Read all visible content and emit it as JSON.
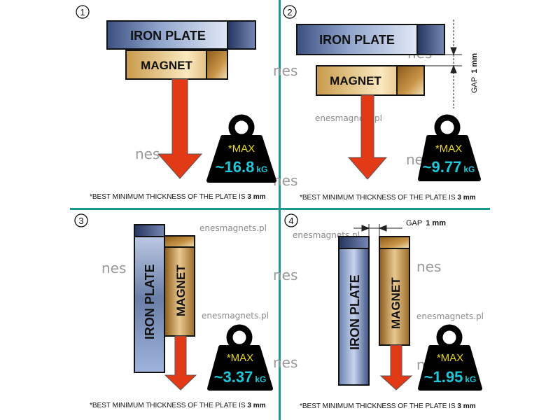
{
  "colors": {
    "divider": "#1a9a8e",
    "weight": "#000000",
    "max_text": "#e8d820",
    "value_text": "#1ec8d8",
    "arrow": "#e23a16"
  },
  "watermark": {
    "logo": "nes",
    "site": "enesmagnets.pl"
  },
  "panels": [
    {
      "number": "1",
      "iron": "IRON PLATE",
      "magnet": "MAGNET",
      "max": "*MAX",
      "value": "~16.8",
      "unit": "kG",
      "foot": "*BEST MINIMUM THICKNESS OF THE PLATE IS ",
      "foot_bold": "3 mm"
    },
    {
      "number": "2",
      "iron": "IRON PLATE",
      "magnet": "MAGNET",
      "gap": "GAP",
      "gap_value": "1 mm",
      "max": "*MAX",
      "value": "~9.77",
      "unit": "kG",
      "foot": "*BEST MINIMUM THICKNESS OF THE PLATE IS ",
      "foot_bold": "3 mm"
    },
    {
      "number": "3",
      "iron": "IRON  PLATE",
      "magnet": "MAGNET",
      "max": "*MAX",
      "value": "~3.37",
      "unit": "kG",
      "foot": "*BEST MINIMUM THICKNESS OF THE PLATE IS ",
      "foot_bold": "3 mm"
    },
    {
      "number": "4",
      "iron": "IRON PLATE",
      "magnet": "MAGNET",
      "gap": "GAP",
      "gap_value": "1 mm",
      "max": "*MAX",
      "value": "~1.95",
      "unit": "kG",
      "foot": "*BEST MINIMUM THICKNESS OF THE PLATE IS ",
      "foot_bold": "3 mm"
    }
  ]
}
